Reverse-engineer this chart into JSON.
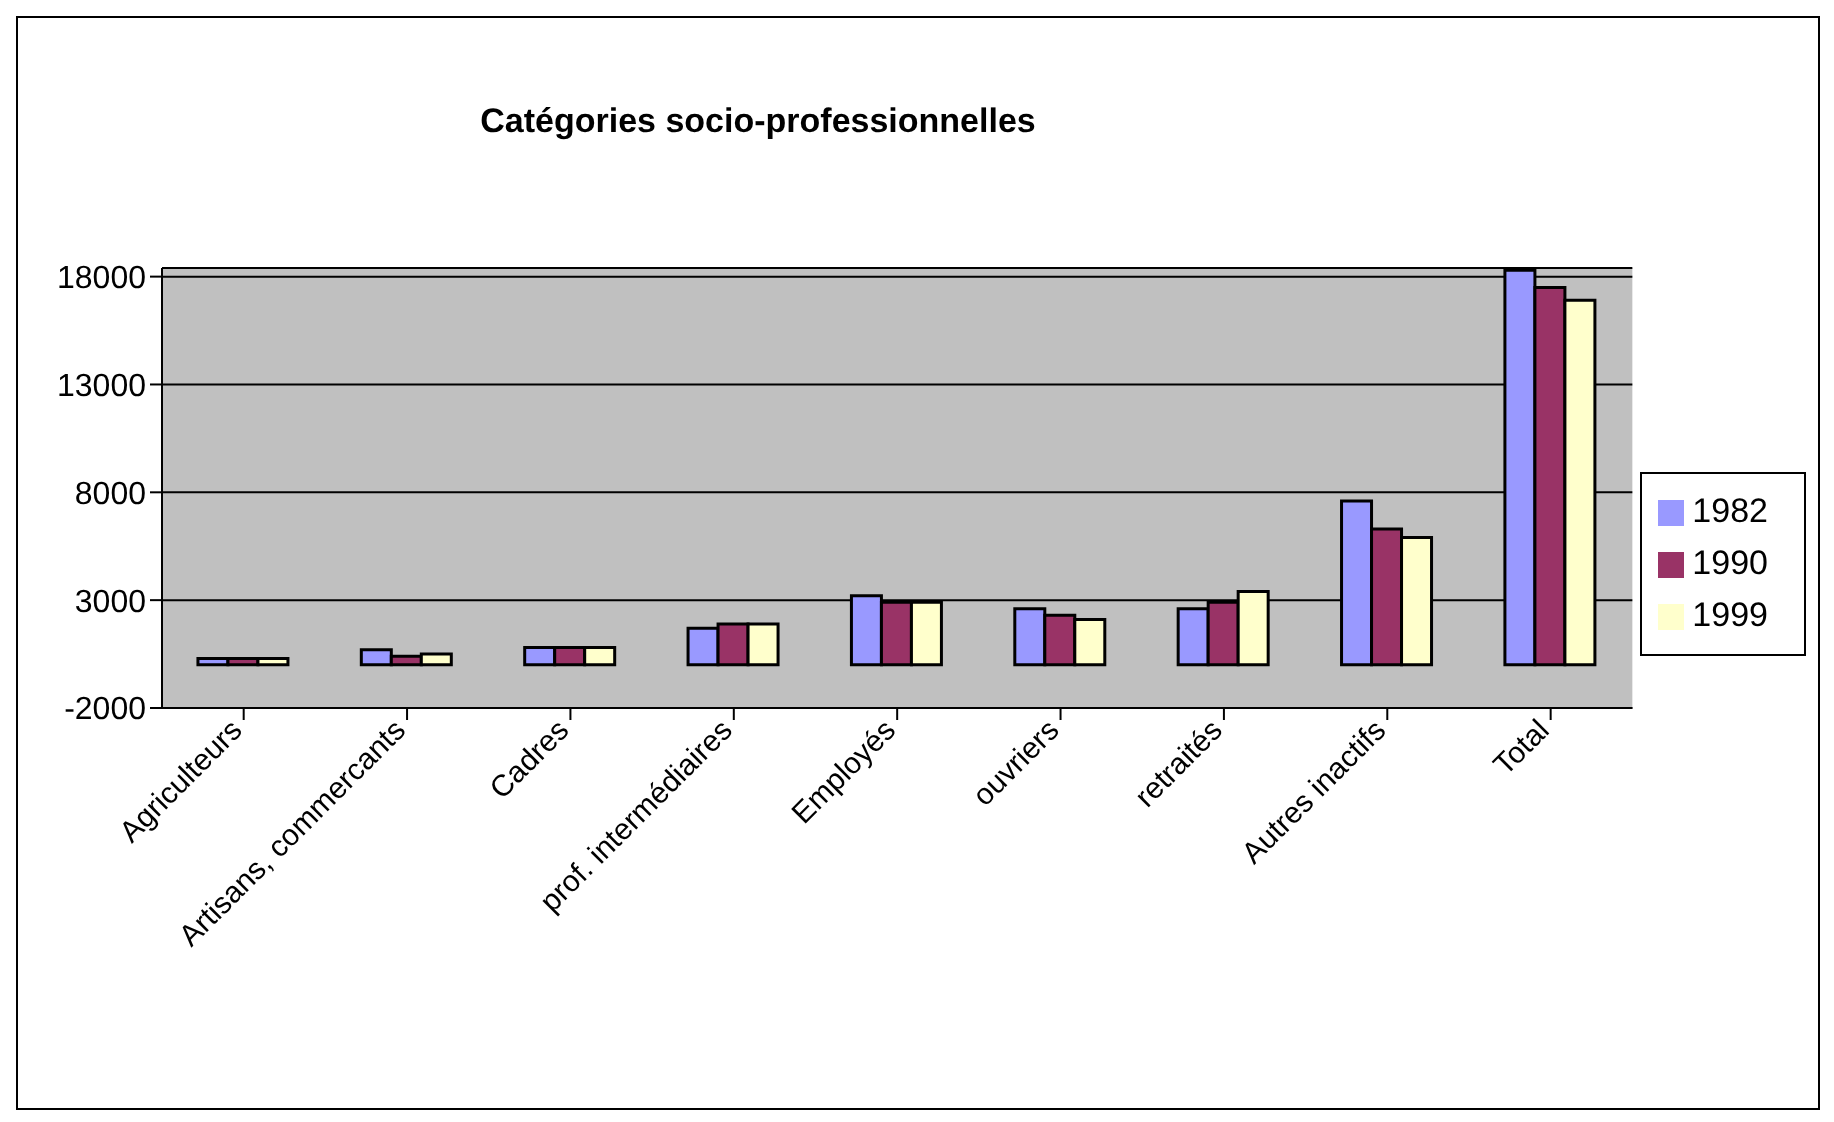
{
  "chart_data": {
    "type": "bar",
    "title": "Catégories socio-professionnelles",
    "categories": [
      "Agriculteurs",
      "Artisans, commercants",
      "Cadres",
      "prof. intermédiaires",
      "Employés",
      "ouvriers",
      "retraités",
      "Autres inactifs",
      "Total"
    ],
    "series": [
      {
        "name": "1982",
        "color": "#9999ff",
        "values": [
          300,
          700,
          800,
          1700,
          3200,
          2600,
          2600,
          7600,
          18300
        ]
      },
      {
        "name": "1990",
        "color": "#993366",
        "values": [
          300,
          400,
          800,
          1900,
          2900,
          2300,
          2900,
          6300,
          17500
        ]
      },
      {
        "name": "1999",
        "color": "#ffffcc",
        "values": [
          300,
          500,
          800,
          1900,
          2900,
          2100,
          3400,
          5900,
          16900
        ]
      }
    ],
    "ylim": [
      -2000,
      18400
    ],
    "yticks": [
      -2000,
      3000,
      8000,
      13000,
      18000
    ],
    "grid": "y",
    "legend": "right"
  }
}
